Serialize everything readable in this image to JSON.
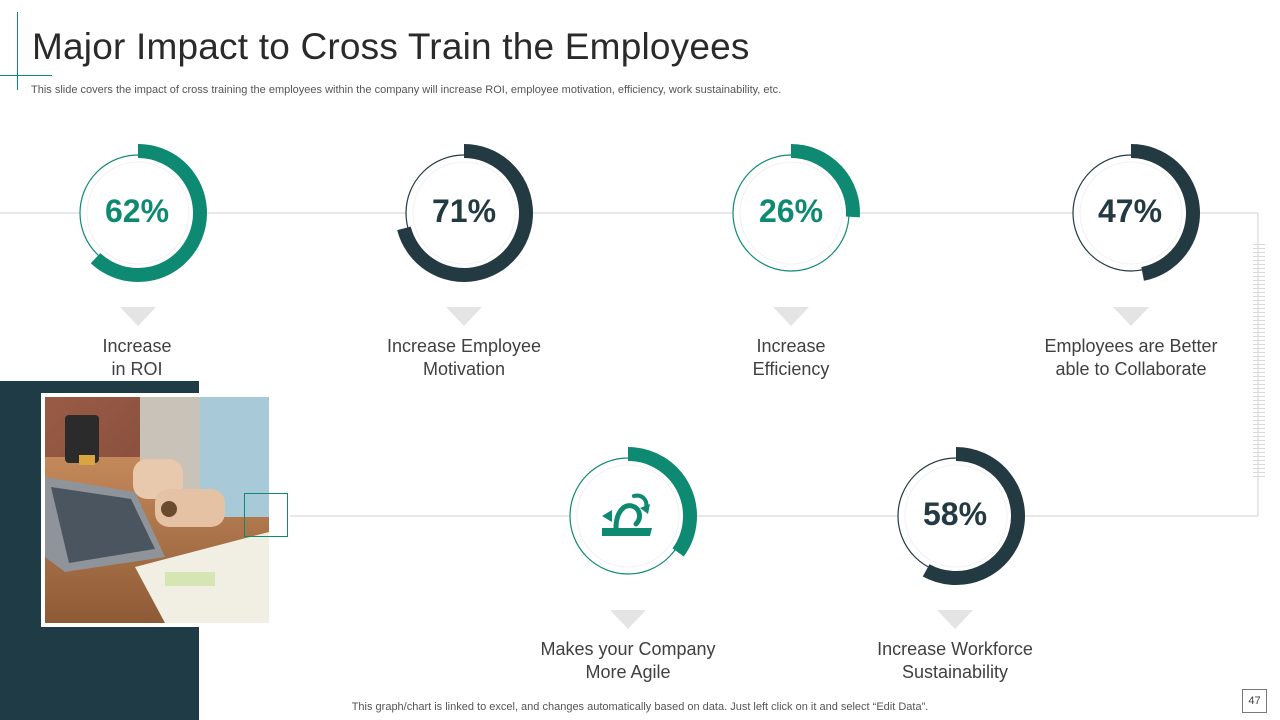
{
  "slide": {
    "title": "Major Impact to Cross Train the Employees",
    "subtitle": "This slide covers the impact of cross training the employees within the company will increase ROI, employee motivation, efficiency, work sustainability, etc.",
    "footer_note": "This graph/chart is linked to excel,  and changes automatically based on data. Just left click on it and select “Edit Data”.",
    "page_number": "47"
  },
  "colors": {
    "teal": "#0e8a72",
    "dark": "#243a42",
    "panel": "#1f3b45",
    "track": "#dfe7e6"
  },
  "metrics": [
    {
      "value_text": "62%",
      "percent": 62,
      "color": "teal",
      "label_lines": [
        "Increase",
        "in ROI"
      ]
    },
    {
      "value_text": "71%",
      "percent": 71,
      "color": "dark",
      "label_lines": [
        "Increase Employee",
        "Motivation"
      ]
    },
    {
      "value_text": "26%",
      "percent": 26,
      "color": "teal",
      "label_lines": [
        "Increase",
        "Efficiency"
      ]
    },
    {
      "value_text": "47%",
      "percent": 47,
      "color": "dark",
      "label_lines": [
        "Employees are Better",
        "able to Collaborate"
      ]
    },
    {
      "value_text": "",
      "percent": 35,
      "color": "teal",
      "icon": "agile-arrow-icon",
      "label_lines": [
        "Makes your Company",
        "More Agile"
      ]
    },
    {
      "value_text": "58%",
      "percent": 58,
      "color": "dark",
      "label_lines": [
        "Increase Workforce",
        "Sustainability"
      ]
    }
  ]
}
